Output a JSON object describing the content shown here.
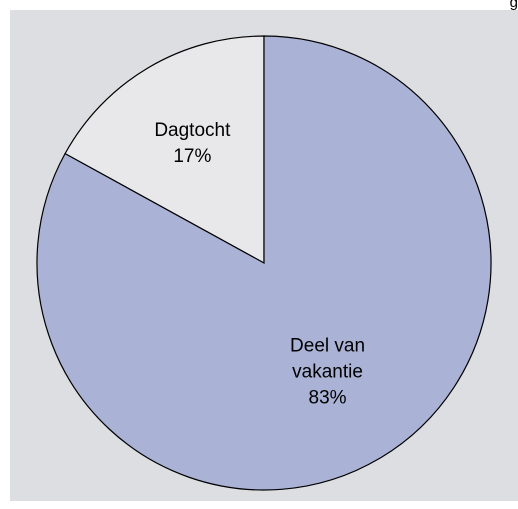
{
  "chart_data": {
    "type": "pie",
    "title": "",
    "top_caption_fragment": "g",
    "slices": [
      {
        "label_lines": [
          "Dagtocht"
        ],
        "pct_label": "17%",
        "value": 17,
        "color": "#e8e8ea"
      },
      {
        "label_lines": [
          "Deel van",
          "vakantie"
        ],
        "pct_label": "83%",
        "value": 83,
        "color": "#aab2d6"
      }
    ],
    "start_angle_deg": 0,
    "direction": "counterclockwise",
    "outline_color": "#000000",
    "background_color": "#dcdee2"
  }
}
